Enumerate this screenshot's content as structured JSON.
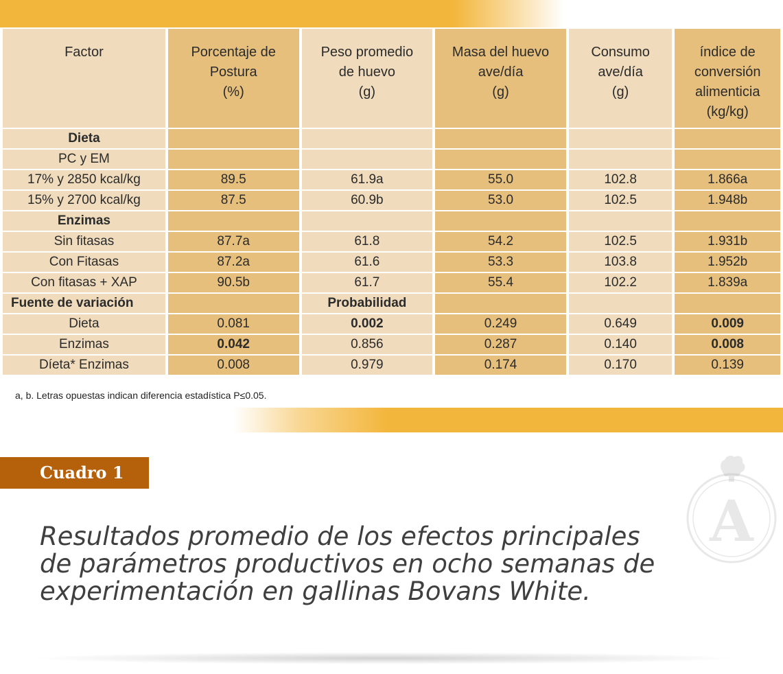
{
  "table": {
    "headers": [
      "Factor",
      "Porcentaje de Postura (%)",
      "Peso promedio de huevo (g)",
      "Masa del huevo ave/día (g)",
      "Consumo ave/día (g)",
      "índice de conversión alimenticia (kg/kg)"
    ],
    "header_lines": [
      [
        "Factor"
      ],
      [
        "Porcentaje de",
        "Postura",
        "(%)"
      ],
      [
        "Peso promedio",
        "de huevo",
        "(g)"
      ],
      [
        "Masa del huevo",
        "ave/día",
        "(g)"
      ],
      [
        "Consumo",
        "ave/día",
        "(g)"
      ],
      [
        "índice de",
        "conversión",
        "alimenticia",
        "(kg/kg)"
      ]
    ],
    "rows": [
      {
        "label": "Dieta",
        "cells": [
          "",
          "",
          "",
          "",
          ""
        ]
      },
      {
        "label": "PC y  EM",
        "cells": [
          "",
          "",
          "",
          "",
          ""
        ]
      },
      {
        "label": "17% y 2850 kcal/kg",
        "cells": [
          "89.5",
          "61.9a",
          "55.0",
          "102.8",
          "1.866a"
        ]
      },
      {
        "label": "15% y 2700 kcal/kg",
        "cells": [
          "87.5",
          "60.9b",
          "53.0",
          "102.5",
          "1.948b"
        ]
      },
      {
        "label": "Enzimas",
        "cells": [
          "",
          "",
          "",
          "",
          ""
        ]
      },
      {
        "label": "Sin fitasas",
        "cells": [
          "87.7a",
          "61.8",
          "54.2",
          "102.5",
          "1.931b"
        ]
      },
      {
        "label": "Con Fitasas",
        "cells": [
          "87.2a",
          "61.6",
          "53.3",
          "103.8",
          "1.952b"
        ]
      },
      {
        "label": "Con fitasas + XAP",
        "cells": [
          "90.5b",
          "61.7",
          "55.4",
          "102.2",
          "1.839a"
        ]
      },
      {
        "label": "Fuente de variación",
        "cells": [
          "",
          "Probabilidad",
          "",
          "",
          ""
        ]
      },
      {
        "label": "Dieta",
        "cells": [
          "0.081",
          "0.002",
          "0.249",
          "0.649",
          "0.009"
        ]
      },
      {
        "label": "Enzimas",
        "cells": [
          "0.042",
          "0.856",
          "0.287",
          "0.140",
          "0.008"
        ]
      },
      {
        "label": "Díeta* Enzimas",
        "cells": [
          "0.008",
          "0.979",
          "0.174",
          "0.170",
          "0.139"
        ]
      }
    ],
    "footnote": "a, b. Letras opuestas indican diferencia estadística P≤0.05."
  },
  "caption": {
    "badge": "Cuadro 1",
    "title": "Resultados promedio de los efectos principales de parámetros productivos en ocho semanas de experimentación en gallinas Bovans White."
  },
  "logo": {
    "letter": "A",
    "icon": "hen-seal-icon"
  },
  "colors": {
    "band": "#f3b63c",
    "cell_light": "#f0dcbc",
    "cell_dark": "#e6bf7d",
    "badge": "#b5600b",
    "title_text": "#3f3f3f"
  }
}
